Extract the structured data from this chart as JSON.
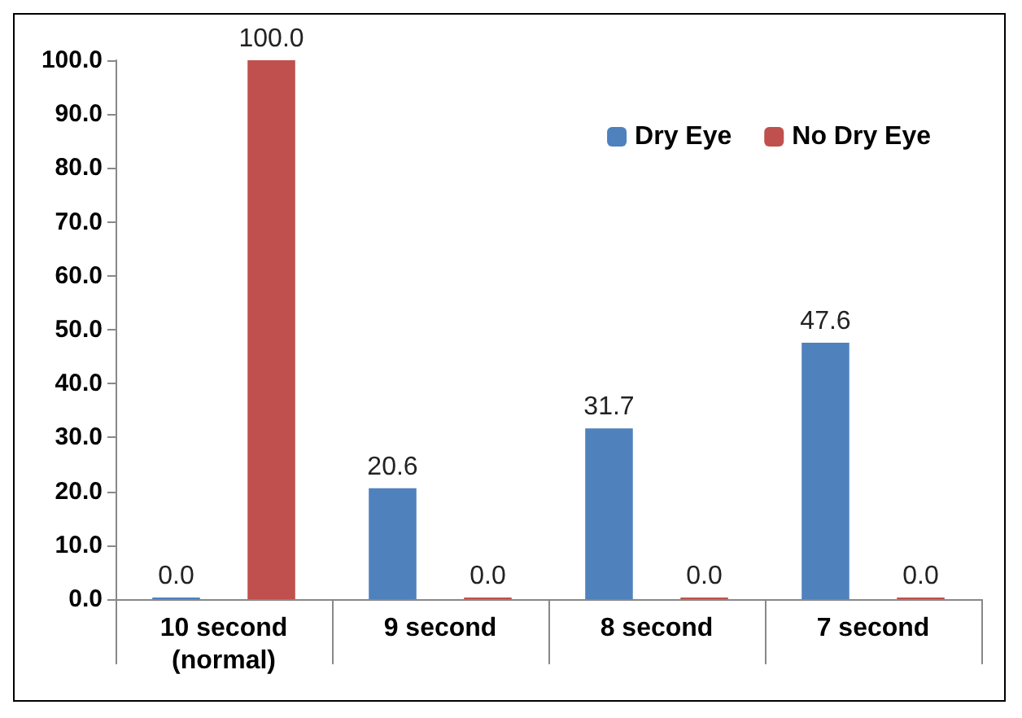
{
  "chart_data": {
    "type": "bar",
    "categories": [
      "10 second\n(normal)",
      "9 second",
      "8 second",
      "7 second"
    ],
    "series": [
      {
        "name": "Dry Eye",
        "color": "#4f81bd",
        "values": [
          0,
          20.6,
          31.7,
          47.6
        ],
        "value_labels": [
          "0.0",
          "20.6",
          "31.7",
          "47.6"
        ]
      },
      {
        "name": "No Dry Eye",
        "color": "#c0504d",
        "values": [
          100,
          0,
          0,
          0
        ],
        "value_labels": [
          "100.0",
          "0.0",
          "0.0",
          "0.0"
        ]
      }
    ],
    "ylim": [
      0,
      100
    ],
    "yticks": [
      {
        "value": 0,
        "label": "0.0"
      },
      {
        "value": 10,
        "label": "10.0"
      },
      {
        "value": 20,
        "label": "20.0"
      },
      {
        "value": 30,
        "label": "30.0"
      },
      {
        "value": 40,
        "label": "40.0"
      },
      {
        "value": 50,
        "label": "50.0"
      },
      {
        "value": 60,
        "label": "60.0"
      },
      {
        "value": 70,
        "label": "70.0"
      },
      {
        "value": 80,
        "label": "80.0"
      },
      {
        "value": 90,
        "label": "90.0"
      },
      {
        "value": 100,
        "label": "100.0"
      }
    ],
    "grid": false,
    "legend": "top right"
  }
}
